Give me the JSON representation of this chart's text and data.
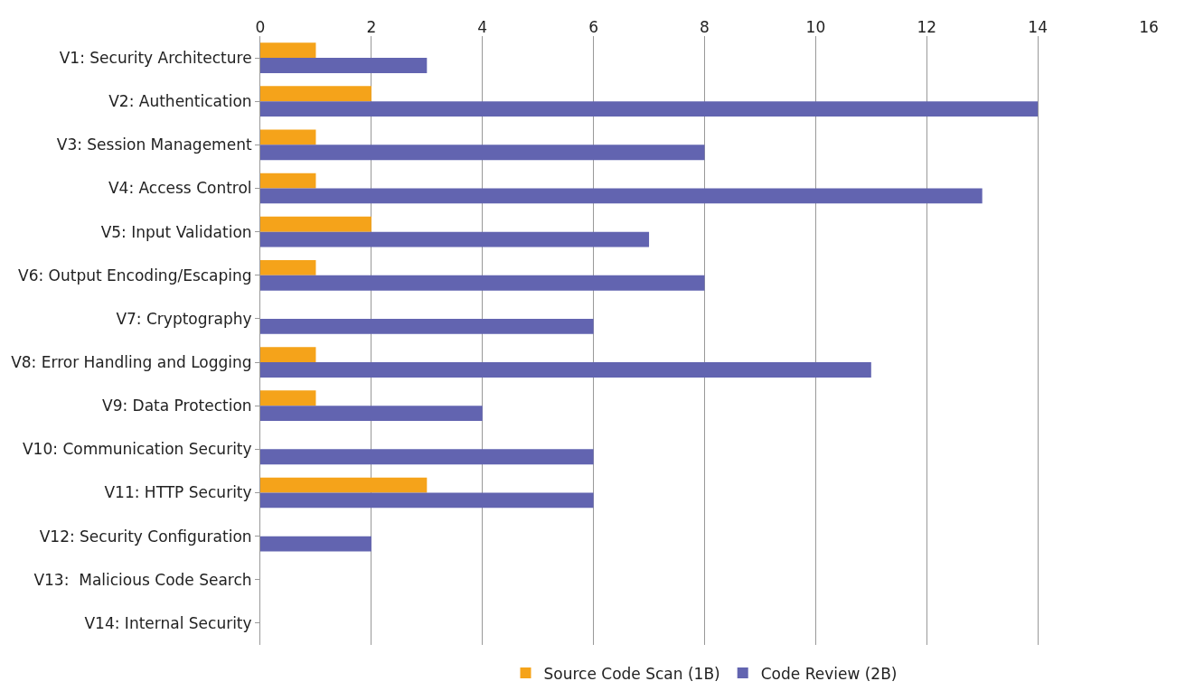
{
  "chart_data": {
    "type": "bar",
    "orientation": "horizontal",
    "categories": [
      "V1: Security Architecture",
      "V2: Authentication",
      "V3: Session Management",
      "V4: Access Control",
      "V5: Input Validation",
      "V6: Output Encoding/Escaping",
      "V7: Cryptography",
      "V8: Error Handling and Logging",
      "V9: Data Protection",
      "V10: Communication Security",
      "V11: HTTP Security",
      "V12: Security Configuration",
      "V13:  Malicious Code Search",
      "V14: Internal Security"
    ],
    "series": [
      {
        "name": "Source Code Scan (1B)",
        "color": "#f5a31a",
        "values": [
          1,
          2,
          1,
          1,
          2,
          1,
          0,
          1,
          1,
          0,
          3,
          0,
          0,
          0
        ]
      },
      {
        "name": "Code Review (2B)",
        "color": "#6264b0",
        "values": [
          3,
          14,
          8,
          13,
          7,
          8,
          6,
          11,
          4,
          6,
          6,
          2,
          0,
          0
        ]
      }
    ],
    "xlim": [
      0,
      16
    ],
    "xticks": [
      0,
      2,
      4,
      6,
      8,
      10,
      12,
      14,
      16
    ],
    "grid": "x",
    "legend": "bottom"
  }
}
